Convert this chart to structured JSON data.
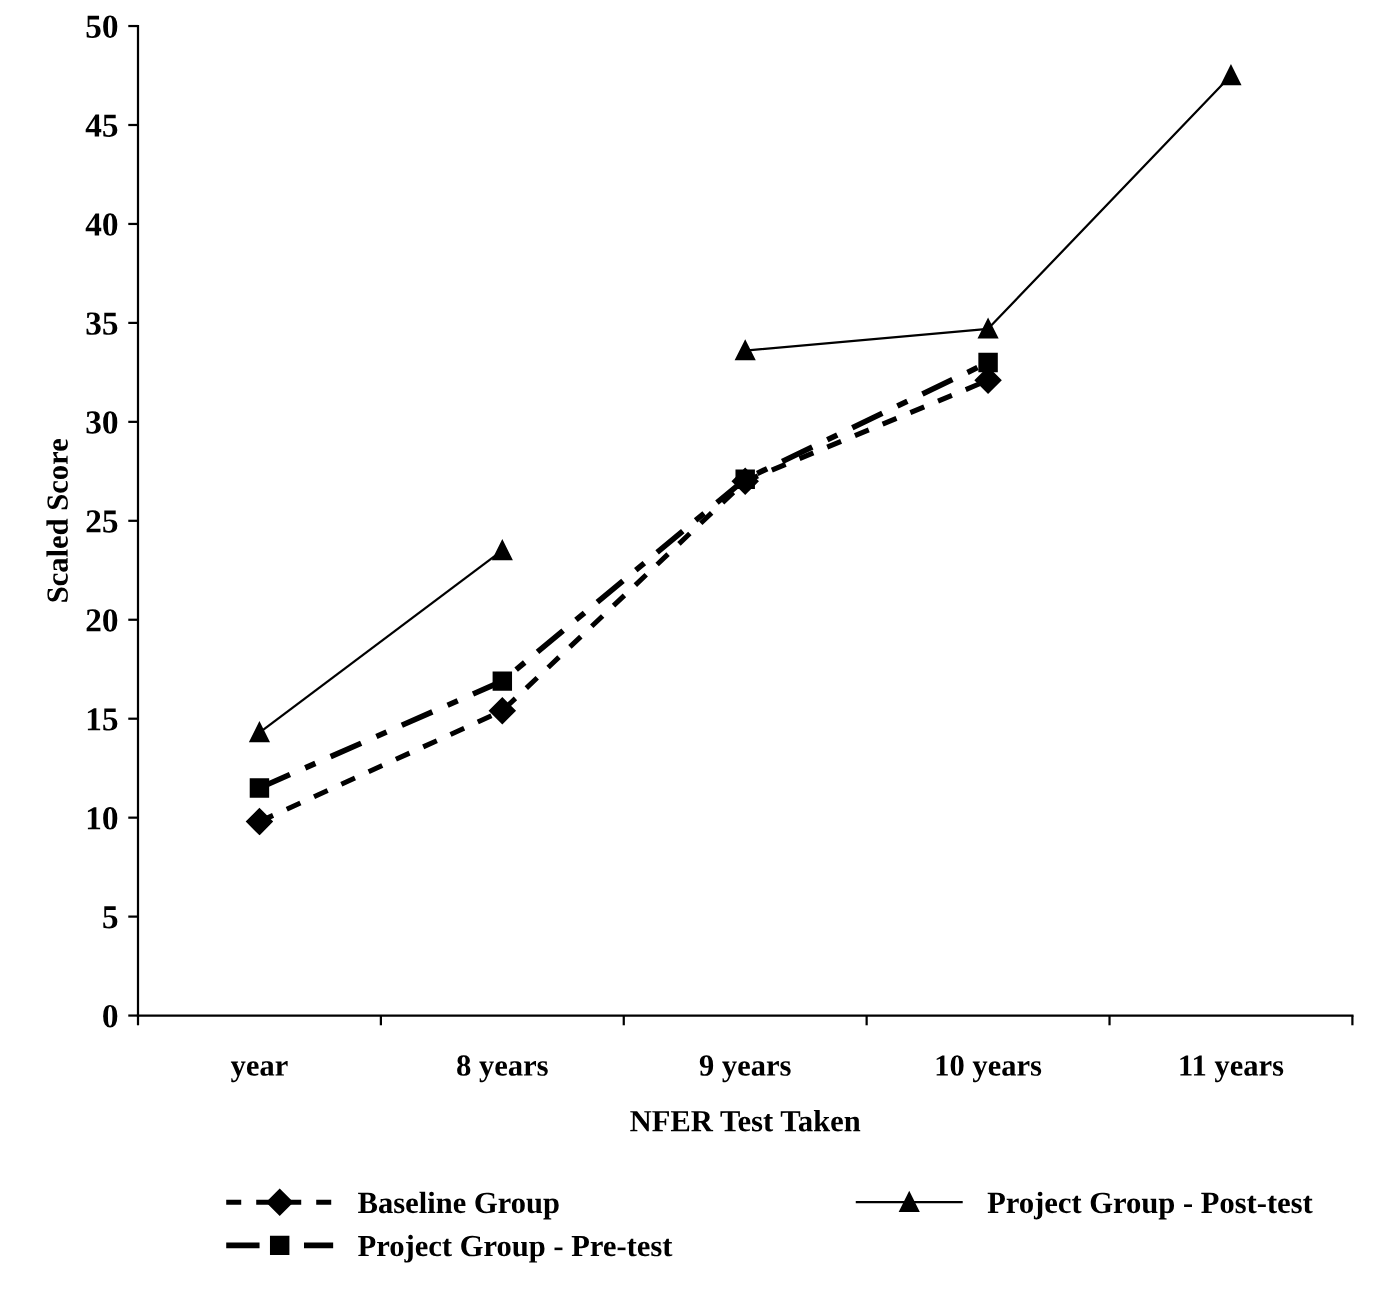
{
  "chart_data": {
    "type": "line",
    "xlabel": "NFER Test Taken",
    "ylabel": "Scaled Score",
    "categories": [
      "year",
      "8 years",
      "9 years",
      "10 years",
      "11 years"
    ],
    "ylim": [
      0,
      50
    ],
    "yticks": [
      0,
      5,
      10,
      15,
      20,
      25,
      30,
      35,
      40,
      45,
      50
    ],
    "grid": false,
    "legend": "bottom",
    "series": [
      {
        "name": "Baseline Group",
        "color": "#000000",
        "marker": "diamond",
        "line_style": "dashed",
        "values": [
          9.8,
          15.4,
          27.0,
          32.1,
          null
        ]
      },
      {
        "name": "Project Group - Pre-test",
        "color": "#000000",
        "marker": "square",
        "line_style": "dashdot",
        "values": [
          11.5,
          16.9,
          27.1,
          33.0,
          null
        ]
      },
      {
        "name": "Project Group - Post-test",
        "color": "#000000",
        "marker": "triangle",
        "line_style": "solid",
        "values": [
          14.3,
          23.5,
          null,
          null,
          null
        ]
      },
      {
        "color": "#000000",
        "marker": "triangle",
        "line_style": "solid",
        "values": [
          null,
          null,
          33.6,
          34.7,
          47.5
        ]
      }
    ]
  }
}
